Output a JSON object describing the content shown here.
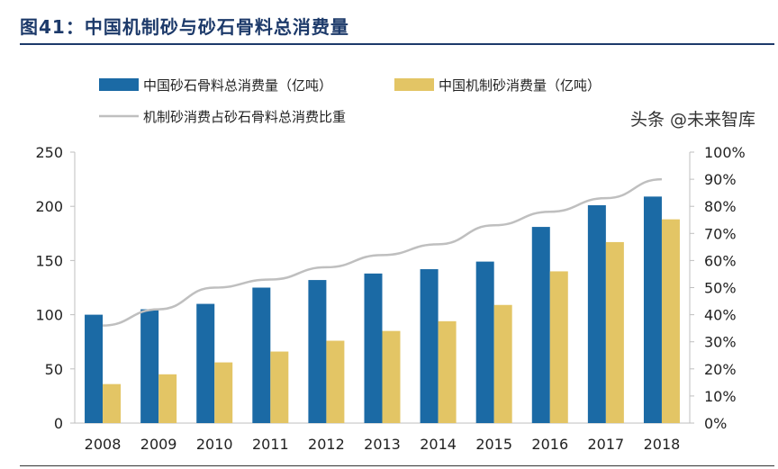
{
  "title": "图41：中国机制砂与砂石骨料总消费量",
  "watermark": "头条 @未来智库",
  "chart_data": {
    "type": "bar",
    "categories": [
      "2008",
      "2009",
      "2010",
      "2011",
      "2012",
      "2013",
      "2014",
      "2015",
      "2016",
      "2017",
      "2018"
    ],
    "series": [
      {
        "name": "中国砂石骨料总消费量（亿吨）",
        "type": "bar",
        "axis": "left",
        "color": "#1b6aa5",
        "values": [
          100,
          105,
          110,
          125,
          132,
          138,
          142,
          149,
          181,
          201,
          209
        ]
      },
      {
        "name": "中国机制砂消费量（亿吨）",
        "type": "bar",
        "axis": "left",
        "color": "#e3c565",
        "values": [
          36,
          45,
          56,
          66,
          76,
          85,
          94,
          109,
          140,
          167,
          188
        ]
      },
      {
        "name": "机制砂消费占砂石骨料总消费比重",
        "type": "line",
        "axis": "right",
        "color": "#bfbfbf",
        "values": [
          36,
          42,
          50,
          53,
          57.5,
          62,
          66,
          73,
          78,
          83,
          90
        ]
      }
    ],
    "ylim": [
      0,
      250
    ],
    "yticks": [
      "0",
      "50",
      "100",
      "150",
      "200",
      "250"
    ],
    "y2lim": [
      0,
      100
    ],
    "y2ticks": [
      "0%",
      "10%",
      "20%",
      "30%",
      "40%",
      "50%",
      "60%",
      "70%",
      "80%",
      "90%",
      "100%"
    ],
    "grid": false,
    "legend": "top"
  }
}
